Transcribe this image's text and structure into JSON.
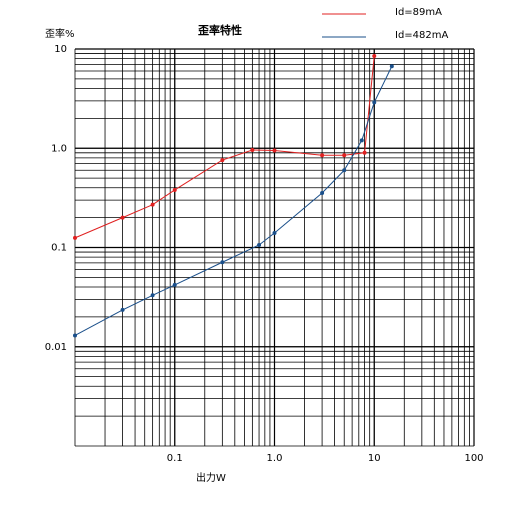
{
  "chart_data": {
    "type": "line",
    "title": "歪率特性",
    "y_label": "歪率%",
    "x_label": "出力W",
    "x_log": true,
    "y_log": true,
    "grid": true,
    "minor_grid": true,
    "legend": "top-right",
    "markers": true,
    "xlim": [
      0.01,
      100
    ],
    "ylim": [
      0.001,
      10
    ],
    "xticks": [
      0.1,
      {
        "value": 1,
        "label": "1.0"
      },
      10,
      100
    ],
    "yticks": [
      0.01,
      0.1,
      {
        "value": 1,
        "label": "1.0"
      },
      10
    ],
    "series": [
      {
        "name": "Id=89mA",
        "color": "#e02020",
        "x": [
          0.01,
          0.03,
          0.06,
          0.1,
          0.3,
          0.6,
          1,
          3,
          5,
          8,
          10
        ],
        "values": [
          0.125,
          0.2,
          0.27,
          0.38,
          0.76,
          0.96,
          0.95,
          0.85,
          0.85,
          0.9,
          8.5
        ]
      },
      {
        "name": "Id=482mA",
        "color": "#1a4f8a",
        "x": [
          0.01,
          0.03,
          0.06,
          0.1,
          0.3,
          0.7,
          1,
          3,
          5,
          7.5,
          10,
          15
        ],
        "values": [
          0.013,
          0.0235,
          0.033,
          0.042,
          0.071,
          0.106,
          0.14,
          0.354,
          0.6,
          1.2,
          2.9,
          6.7
        ]
      }
    ]
  }
}
